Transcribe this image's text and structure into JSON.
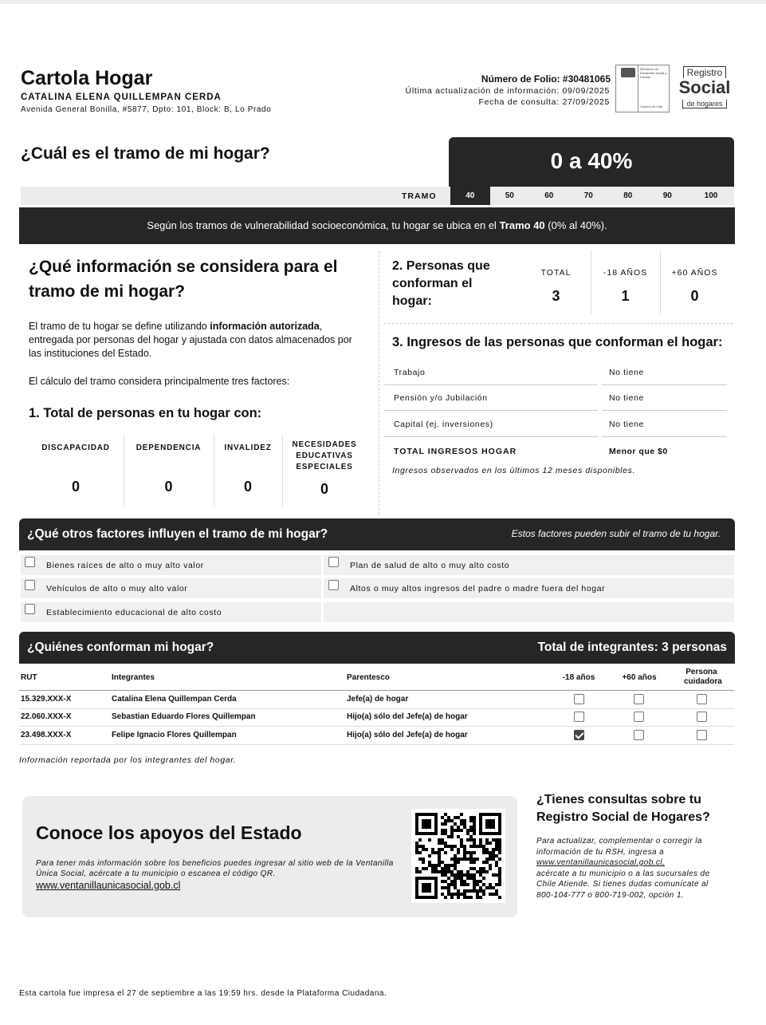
{
  "header": {
    "title": "Cartola Hogar",
    "name": "CATALINA ELENA QUILLEMPAN CERDA",
    "address": "Avenida General Bonilla, #5877, Dpto: 101, Block: B, Lo Prado",
    "folio": "Número de Folio: #30481065",
    "last_update": "Última actualización de información: 09/09/2025",
    "consult_date": "Fecha de consulta: 27/09/2025",
    "ministry_logo": "Ministerio de Desarrollo Social y Familia",
    "ministry_footer": "Gobierno de Chile",
    "rsh_logo": {
      "top": "Registro",
      "main": "Social",
      "bottom": "de hogares"
    }
  },
  "tramo": {
    "question": "¿Cuál es el tramo de mi hogar?",
    "result": "0 a 40%",
    "label": "TRAMO",
    "scale": [
      "40",
      "50",
      "60",
      "70",
      "80",
      "90",
      "100"
    ],
    "selected_index": 0,
    "banner_pre": "Según los tramos de vulnerabilidad socioeconómica, tu hogar se ubica en el ",
    "banner_bold": "Tramo 40",
    "banner_post": " (0% al 40%)."
  },
  "info": {
    "heading": "¿Qué información se considera para el tramo de mi hogar?",
    "p1_a": "El tramo de tu hogar se define utilizando ",
    "p1_b": "información autorizada",
    "p1_c": ", entregada por personas del hogar y ajustada con datos almacenados por las instituciones del Estado.",
    "p2": "El cálculo del tramo considera principalmente tres factores:",
    "section1": "1. Total de personas en tu hogar con:",
    "conditions": [
      {
        "label": "DISCAPACIDAD",
        "value": "0"
      },
      {
        "label": "DEPENDENCIA",
        "value": "0"
      },
      {
        "label": "INVALIDEZ",
        "value": "0"
      },
      {
        "label": "NECESIDADES EDUCATIVAS ESPECIALES",
        "value": "0"
      }
    ]
  },
  "personas": {
    "heading": "2. Personas que conforman el hogar:",
    "cols": [
      {
        "label": "TOTAL",
        "value": "3"
      },
      {
        "label": "-18 AÑOS",
        "value": "1"
      },
      {
        "label": "+60 AÑOS",
        "value": "0"
      }
    ]
  },
  "ingresos": {
    "heading": "3. Ingresos de las personas que conforman el hogar:",
    "rows": [
      {
        "label": "Trabajo",
        "value": "No tiene"
      },
      {
        "label": "Pensión y/o Jubilación",
        "value": "No tiene"
      },
      {
        "label": "Capital (ej. inversiones)",
        "value": "No tiene"
      }
    ],
    "total_label": "TOTAL INGRESOS HOGAR",
    "total_value": "Menor que $0",
    "note": "Ingresos observados en los últimos 12 meses disponibles."
  },
  "factores": {
    "heading": "¿Qué otros factores influyen el tramo de mi hogar?",
    "note": "Estos factores pueden subir el tramo de tu hogar.",
    "items": [
      "Bienes raíces de alto o muy alto valor",
      "Plan de salud de alto o muy alto costo",
      "Vehículos de alto o muy alto valor",
      "Altos o muy altos ingresos del padre o madre fuera del hogar",
      "Establecimiento educacional de alto costo"
    ]
  },
  "hogar": {
    "heading": "¿Quiénes conforman mi hogar?",
    "total": "Total de integrantes: 3 personas",
    "columns": [
      "RUT",
      "Integrantes",
      "Parentesco",
      "-18 años",
      "+60 años",
      "Persona cuidadora"
    ],
    "rows": [
      {
        "rut": "15.329.XXX-X",
        "name": "Catalina Elena Quillempan Cerda",
        "rel": "Jefe(a) de hogar",
        "u18": false,
        "o60": false,
        "care": false
      },
      {
        "rut": "22.060.XXX-X",
        "name": "Sebastian Eduardo Flores Quillempan",
        "rel": "Hijo(a) sólo del Jefe(a) de hogar",
        "u18": false,
        "o60": false,
        "care": false
      },
      {
        "rut": "23.498.XXX-X",
        "name": "Felipe Ignacio Flores Quillempan",
        "rel": "Hijo(a) sólo del Jefe(a) de hogar",
        "u18": true,
        "o60": false,
        "care": false
      }
    ],
    "note": "Información reportada por los integrantes del hogar."
  },
  "apoyos": {
    "heading": "Conoce los apoyos del Estado",
    "text": "Para tener más información sobre los beneficios puedes ingresar al sitio web de la Ventanilla Única Social, acércate a tu municipio o escanea el código QR.",
    "link": "www.ventanillaunicasocial.gob.cl"
  },
  "consultas": {
    "heading": "¿Tienes consultas sobre tu Registro Social de Hogares?",
    "t1": "Para actualizar, complementar o corregir la información de tu RSH, ingresa a",
    "link": "www.ventanillaunicasocial.gob.cl,",
    "t2": "acércate a tu municipio o a las sucursales de Chile Atiende. Si tienes dudas comunícate al 800-104-777 o 800-719-002, opción 1."
  },
  "footer": "Esta cartola fue impresa el 27 de septiembre a las 19:59 hrs. desde la Plataforma Ciudadana."
}
